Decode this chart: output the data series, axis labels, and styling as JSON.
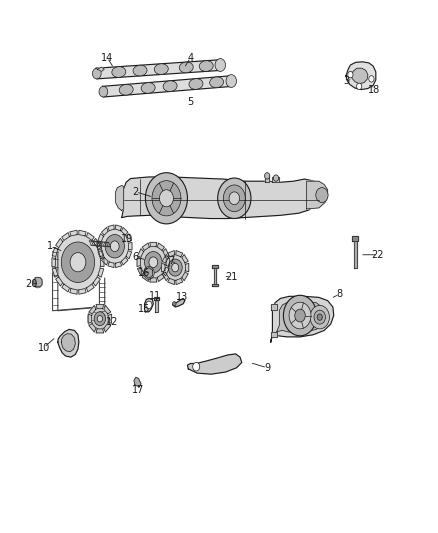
{
  "bg_color": "#ffffff",
  "fig_width": 4.38,
  "fig_height": 5.33,
  "dpi": 100,
  "line_color": "#1a1a1a",
  "text_color": "#1a1a1a",
  "label_fontsize": 7.0,
  "parts_fill": "#e8e8e8",
  "parts_dark": "#aaaaaa",
  "parts_mid": "#cccccc",
  "callouts": {
    "1": {
      "lp": [
        0.115,
        0.538
      ],
      "le": [
        0.145,
        0.528
      ]
    },
    "2": {
      "lp": [
        0.31,
        0.64
      ],
      "le": [
        0.35,
        0.63
      ]
    },
    "3": {
      "lp": [
        0.79,
        0.848
      ],
      "le": [
        0.805,
        0.852
      ]
    },
    "4": {
      "lp": [
        0.435,
        0.892
      ],
      "le": [
        0.42,
        0.872
      ]
    },
    "5": {
      "lp": [
        0.435,
        0.808
      ],
      "le": [
        0.43,
        0.818
      ]
    },
    "6": {
      "lp": [
        0.31,
        0.518
      ],
      "le": [
        0.335,
        0.512
      ]
    },
    "7": {
      "lp": [
        0.39,
        0.51
      ],
      "le": [
        0.405,
        0.506
      ]
    },
    "8": {
      "lp": [
        0.775,
        0.448
      ],
      "le": [
        0.755,
        0.44
      ]
    },
    "9": {
      "lp": [
        0.61,
        0.31
      ],
      "le": [
        0.57,
        0.32
      ]
    },
    "10": {
      "lp": [
        0.1,
        0.348
      ],
      "le": [
        0.128,
        0.368
      ]
    },
    "11": {
      "lp": [
        0.355,
        0.445
      ],
      "le": [
        0.36,
        0.43
      ]
    },
    "12": {
      "lp": [
        0.255,
        0.395
      ],
      "le": [
        0.245,
        0.408
      ]
    },
    "13": {
      "lp": [
        0.415,
        0.442
      ],
      "le": [
        0.4,
        0.435
      ]
    },
    "14": {
      "lp": [
        0.245,
        0.892
      ],
      "le": [
        0.26,
        0.872
      ]
    },
    "15": {
      "lp": [
        0.33,
        0.42
      ],
      "le": [
        0.34,
        0.428
      ]
    },
    "16": {
      "lp": [
        0.328,
        0.488
      ],
      "le": [
        0.345,
        0.49
      ]
    },
    "17": {
      "lp": [
        0.315,
        0.268
      ],
      "le": [
        0.32,
        0.282
      ]
    },
    "18": {
      "lp": [
        0.855,
        0.832
      ],
      "le": [
        0.848,
        0.842
      ]
    },
    "19": {
      "lp": [
        0.29,
        0.552
      ],
      "le": [
        0.278,
        0.542
      ]
    },
    "20": {
      "lp": [
        0.072,
        0.468
      ],
      "le": [
        0.09,
        0.468
      ]
    },
    "21": {
      "lp": [
        0.528,
        0.48
      ],
      "le": [
        0.51,
        0.482
      ]
    },
    "22": {
      "lp": [
        0.862,
        0.522
      ],
      "le": [
        0.822,
        0.522
      ]
    }
  }
}
